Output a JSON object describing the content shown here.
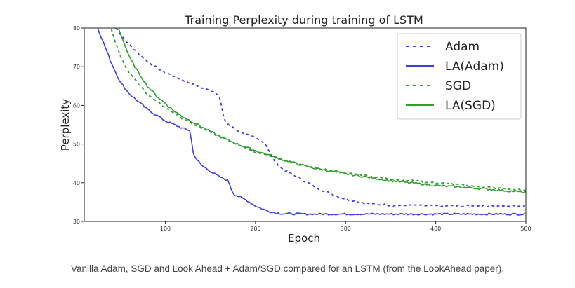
{
  "chart_data": {
    "type": "line",
    "title": "Training Perplexity during training of LSTM",
    "xlabel": "Epoch",
    "ylabel": "Perplexity",
    "xlim": [
      10,
      500
    ],
    "ylim": [
      30,
      80
    ],
    "xticks": [
      100,
      200,
      300,
      400,
      500
    ],
    "yticks": [
      30,
      40,
      50,
      60,
      70,
      80
    ],
    "grid": false,
    "legend": "top-right",
    "series": [
      {
        "name": "Adam",
        "style": "dashed",
        "color": "#3b3fe0",
        "x": [
          45,
          55,
          65,
          75,
          85,
          100,
          120,
          140,
          155,
          160,
          165,
          170,
          180,
          195,
          210,
          220,
          230,
          250,
          270,
          290,
          310,
          330,
          350,
          370,
          400,
          430,
          460,
          500
        ],
        "y": [
          80,
          77,
          74.5,
          72.5,
          70.5,
          68.5,
          66.5,
          64.5,
          63.5,
          62.5,
          56.5,
          55,
          53.5,
          52,
          50.5,
          46,
          43.5,
          41,
          38.5,
          36.5,
          35.2,
          34.5,
          34.2,
          34.1,
          34,
          34,
          34,
          34
        ]
      },
      {
        "name": "LA(Adam)",
        "style": "solid",
        "color": "#3b3fe0",
        "x": [
          25,
          30,
          35,
          40,
          45,
          50,
          55,
          60,
          70,
          80,
          90,
          100,
          110,
          120,
          128,
          130,
          135,
          140,
          150,
          160,
          170,
          172,
          176,
          190,
          200,
          210,
          220,
          230,
          260,
          300,
          350,
          400,
          450,
          500
        ],
        "y": [
          80,
          77,
          74,
          71,
          68.5,
          66,
          64.5,
          63,
          61,
          59,
          57.5,
          56,
          55,
          54,
          53.5,
          48,
          46,
          44.5,
          43,
          41.5,
          40.5,
          39,
          37,
          35.5,
          34,
          33,
          32.3,
          32,
          31.9,
          31.9,
          31.9,
          31.9,
          31.9,
          31.9
        ]
      },
      {
        "name": "SGD",
        "style": "dashed",
        "color": "#2e9e2e",
        "x": [
          40,
          45,
          50,
          55,
          60,
          70,
          80,
          90,
          100,
          110,
          120,
          140,
          160,
          180,
          200,
          230,
          260,
          300,
          350,
          400,
          450,
          500
        ],
        "y": [
          80,
          76,
          73,
          70.5,
          68.5,
          65.5,
          63,
          61,
          59.5,
          58,
          56.5,
          54,
          52,
          50,
          48,
          46,
          44,
          42.5,
          41,
          40,
          39,
          38
        ]
      },
      {
        "name": "LA(SGD)",
        "style": "solid",
        "color": "#2e9e2e",
        "x": [
          48,
          52,
          56,
          60,
          65,
          70,
          80,
          90,
          100,
          110,
          120,
          140,
          160,
          180,
          200,
          230,
          260,
          300,
          350,
          400,
          450,
          500
        ],
        "y": [
          80,
          77.5,
          75,
          72.5,
          70.5,
          68.5,
          65,
          62.5,
          60.5,
          58.5,
          57,
          54.5,
          52,
          50,
          48.3,
          46,
          44,
          42.3,
          40.5,
          39.3,
          38.5,
          37.5
        ]
      }
    ]
  },
  "caption": "Vanilla Adam, SGD and Look Ahead + Adam/SGD compared for an LSTM (from the LookAhead paper)."
}
